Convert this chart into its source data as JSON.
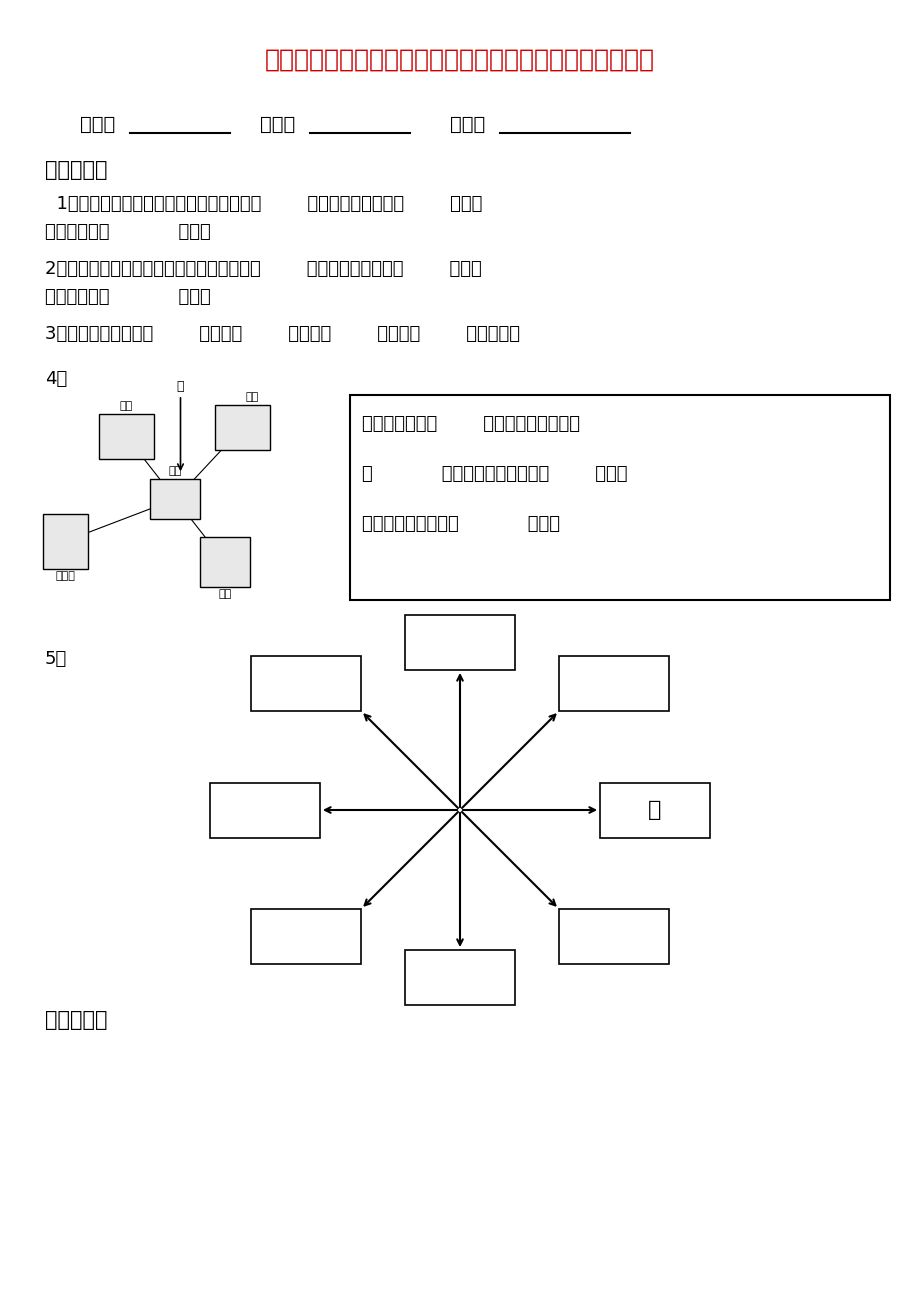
{
  "title": "日照第四小学三年级下册第一单元《位置与方向》考试试题",
  "title_color": "#CC0000",
  "bg_color": "#FFFFFF",
  "header_labels": [
    "班级：",
    "姓名：",
    "等级："
  ],
  "section1_title": "一、填空：",
  "q1": "  1、早晨，当你面对太阳时，你的后面是（        ）面，你的左面是（        ）面，",
  "q1b": "你的右面是（            ）面。",
  "q2": "2、晚上，当你面对北极星时，你的后面是（        ）面，你的左面是（        ）面，",
  "q2b": "你的右面是（            ）面。",
  "q3": "3、地图通常是按上（        ）、下（        ）、左（        ）、右（        ）绘制的。",
  "q4": "4、",
  "q4_box_text": "邮局在学校的（        ）面；超市在学校的\n（            ）面；书店在学校的（        ）面；\n碧海园在书店的是（            ）面。",
  "q5": "5、",
  "dong_label": "东",
  "section2_title": "二、选择："
}
